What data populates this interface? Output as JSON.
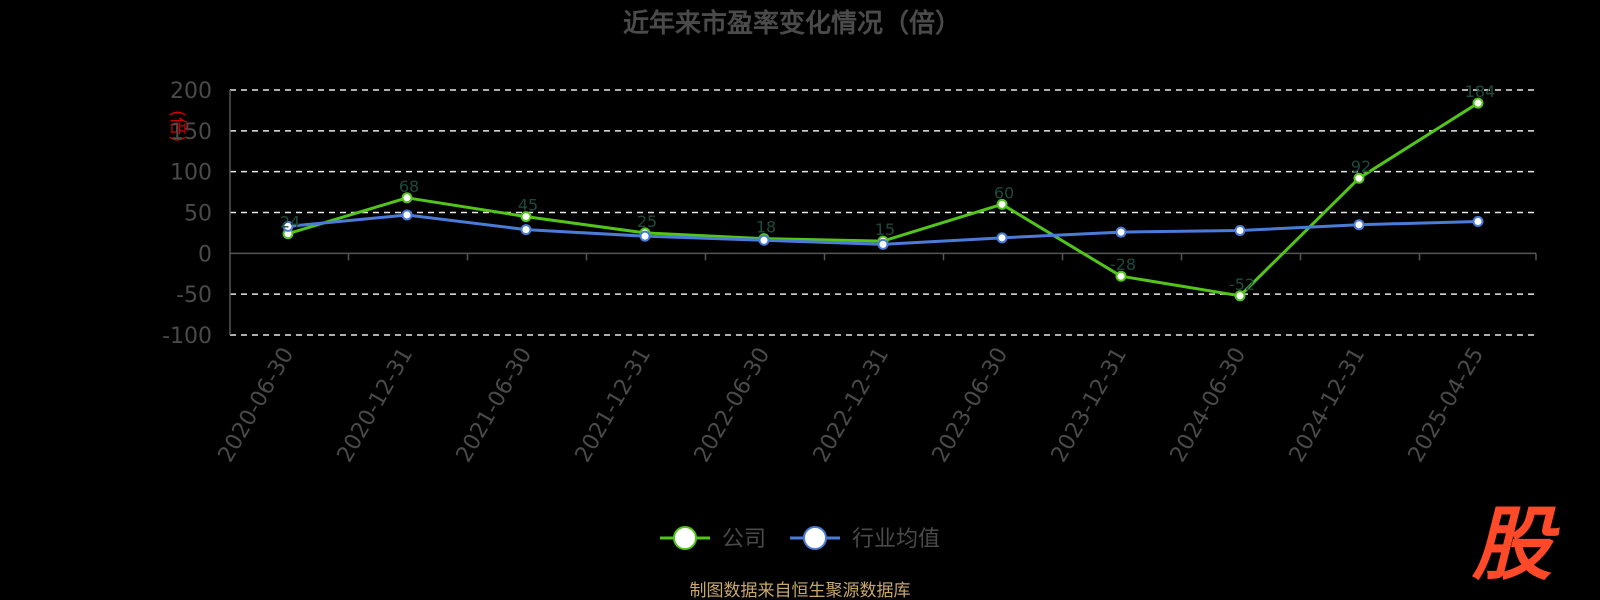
{
  "chart_data": {
    "type": "line",
    "title": "近年来市盈率变化情况（倍）",
    "ylabel": "(倍)",
    "ylim": [
      -100,
      200
    ],
    "yticks": [
      -100,
      -50,
      0,
      50,
      100,
      150,
      200
    ],
    "grid": true,
    "legend_position": "bottom",
    "categories": [
      "2020-06-30",
      "2020-12-31",
      "2021-06-30",
      "2021-12-31",
      "2022-06-30",
      "2022-12-31",
      "2023-06-30",
      "2023-12-31",
      "2024-06-30",
      "2024-12-31",
      "2025-04-25"
    ],
    "series": [
      {
        "name": "公司",
        "color": "#52c41a",
        "values": [
          24,
          68,
          45,
          25,
          18,
          15,
          60,
          -28,
          -52,
          92,
          184
        ]
      },
      {
        "name": "行业均值",
        "color": "#4a7bd8",
        "values": [
          33,
          47,
          29,
          21,
          16,
          11,
          19,
          26,
          28,
          35,
          39
        ]
      }
    ],
    "source": "制图数据来自恒生聚源数据库"
  },
  "logo": {
    "glyph": "股",
    "color": "#ff4a2a"
  }
}
